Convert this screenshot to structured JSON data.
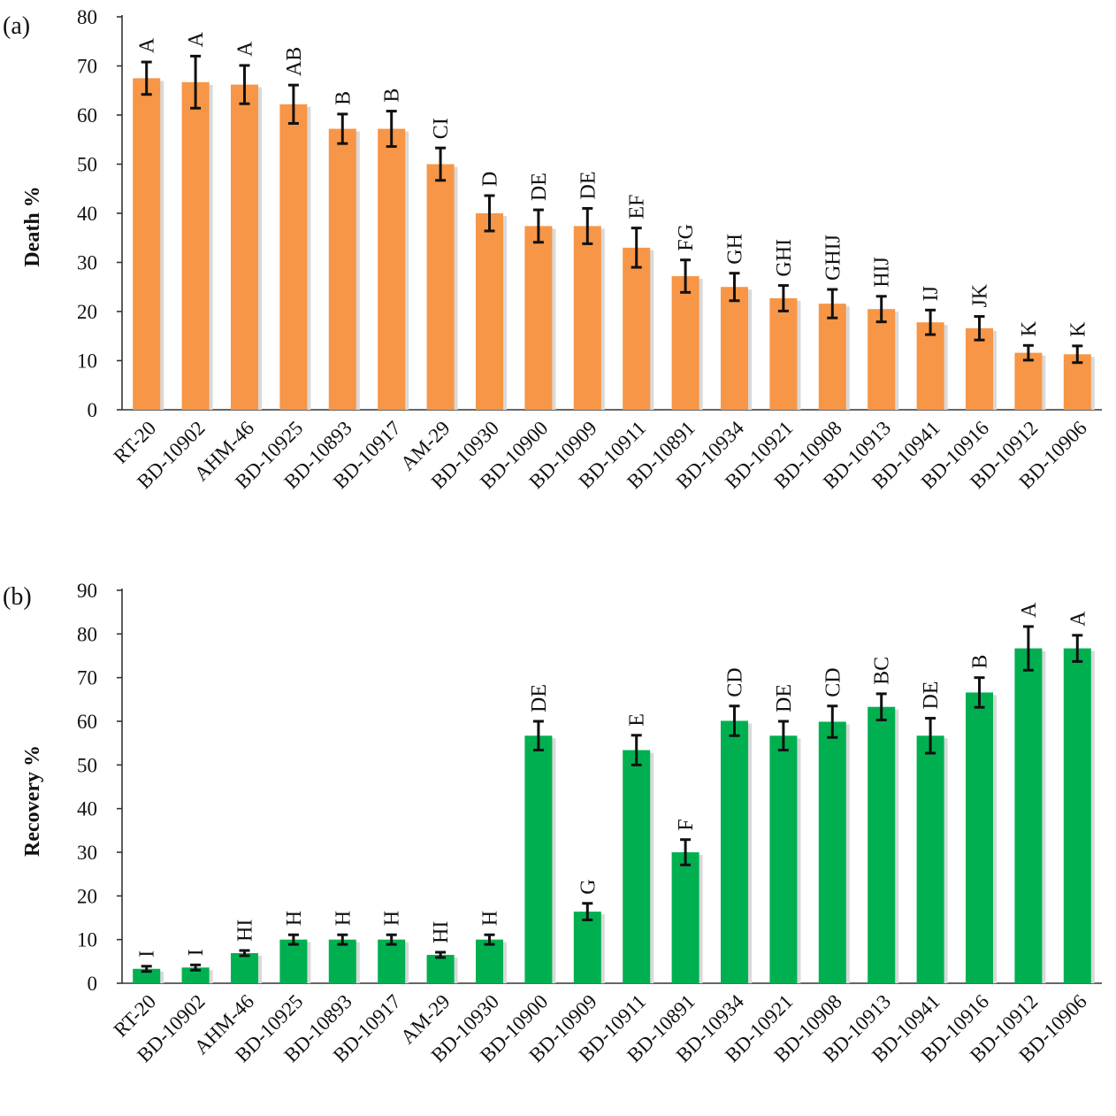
{
  "chart_data": [
    {
      "type": "bar",
      "panel_label": "(a)",
      "ylabel": "Death %",
      "ylim": [
        0,
        80
      ],
      "yticks": [
        "0",
        "10",
        "20",
        "30",
        "40",
        "50",
        "60",
        "70",
        "80"
      ],
      "color": "#f79646",
      "categories": [
        "RT-20",
        "BD-10902",
        "AHM-46",
        "BD-10925",
        "BD-10893",
        "BD-10917",
        "AM-29",
        "BD-10930",
        "BD-10900",
        "BD-10909",
        "BD-10911",
        "BD-10891",
        "BD-10934",
        "BD-10921",
        "BD-10908",
        "BD-10913",
        "BD-10941",
        "BD-10916",
        "BD-10912",
        "BD-10906"
      ],
      "values": [
        67.5,
        66.7,
        66.2,
        62.2,
        57.2,
        57.2,
        50.0,
        40.0,
        37.4,
        37.4,
        33.0,
        27.2,
        25.0,
        22.7,
        21.6,
        20.5,
        17.8,
        16.6,
        11.6,
        11.3
      ],
      "errors": [
        3.3,
        5.3,
        3.9,
        3.9,
        3.0,
        3.6,
        3.3,
        3.6,
        3.3,
        3.6,
        4.0,
        3.3,
        2.8,
        2.6,
        2.9,
        2.6,
        2.5,
        2.4,
        1.5,
        1.7
      ],
      "letters": [
        "A",
        "A",
        "A",
        "AB",
        "B",
        "B",
        "CI",
        "D",
        "DE",
        "DE",
        "EF",
        "FG",
        "GH",
        "GHI",
        "GHIJ",
        "HIJ",
        "IJ",
        "JK",
        "K",
        "K"
      ]
    },
    {
      "type": "bar",
      "panel_label": "(b)",
      "ylabel": "Recovery %",
      "ylim": [
        0,
        90
      ],
      "yticks": [
        "0",
        "10",
        "20",
        "30",
        "40",
        "50",
        "60",
        "70",
        "80",
        "90"
      ],
      "color": "#00b050",
      "categories": [
        "RT-20",
        "BD-10902",
        "AHM-46",
        "BD-10925",
        "BD-10893",
        "BD-10917",
        "AM-29",
        "BD-10930",
        "BD-10900",
        "BD-10909",
        "BD-10911",
        "BD-10891",
        "BD-10934",
        "BD-10921",
        "BD-10908",
        "BD-10913",
        "BD-10941",
        "BD-10916",
        "BD-10912",
        "BD-10906"
      ],
      "values": [
        3.3,
        3.6,
        6.9,
        10.0,
        10.0,
        10.0,
        6.5,
        10.0,
        56.7,
        16.4,
        53.4,
        30.0,
        60.1,
        56.7,
        59.9,
        63.3,
        56.7,
        66.6,
        76.7,
        76.7
      ],
      "errors": [
        0.6,
        0.6,
        0.6,
        1.1,
        1.1,
        1.1,
        0.6,
        1.1,
        3.3,
        1.9,
        3.4,
        2.9,
        3.4,
        3.3,
        3.6,
        3.0,
        4.0,
        3.4,
        5.0,
        3.0
      ],
      "letters": [
        "I",
        "I",
        "HI",
        "H",
        "H",
        "H",
        "HI",
        "H",
        "DE",
        "G",
        "E",
        "F",
        "CD",
        "DE",
        "CD",
        "BC",
        "DE",
        "B",
        "A",
        "A"
      ]
    }
  ]
}
